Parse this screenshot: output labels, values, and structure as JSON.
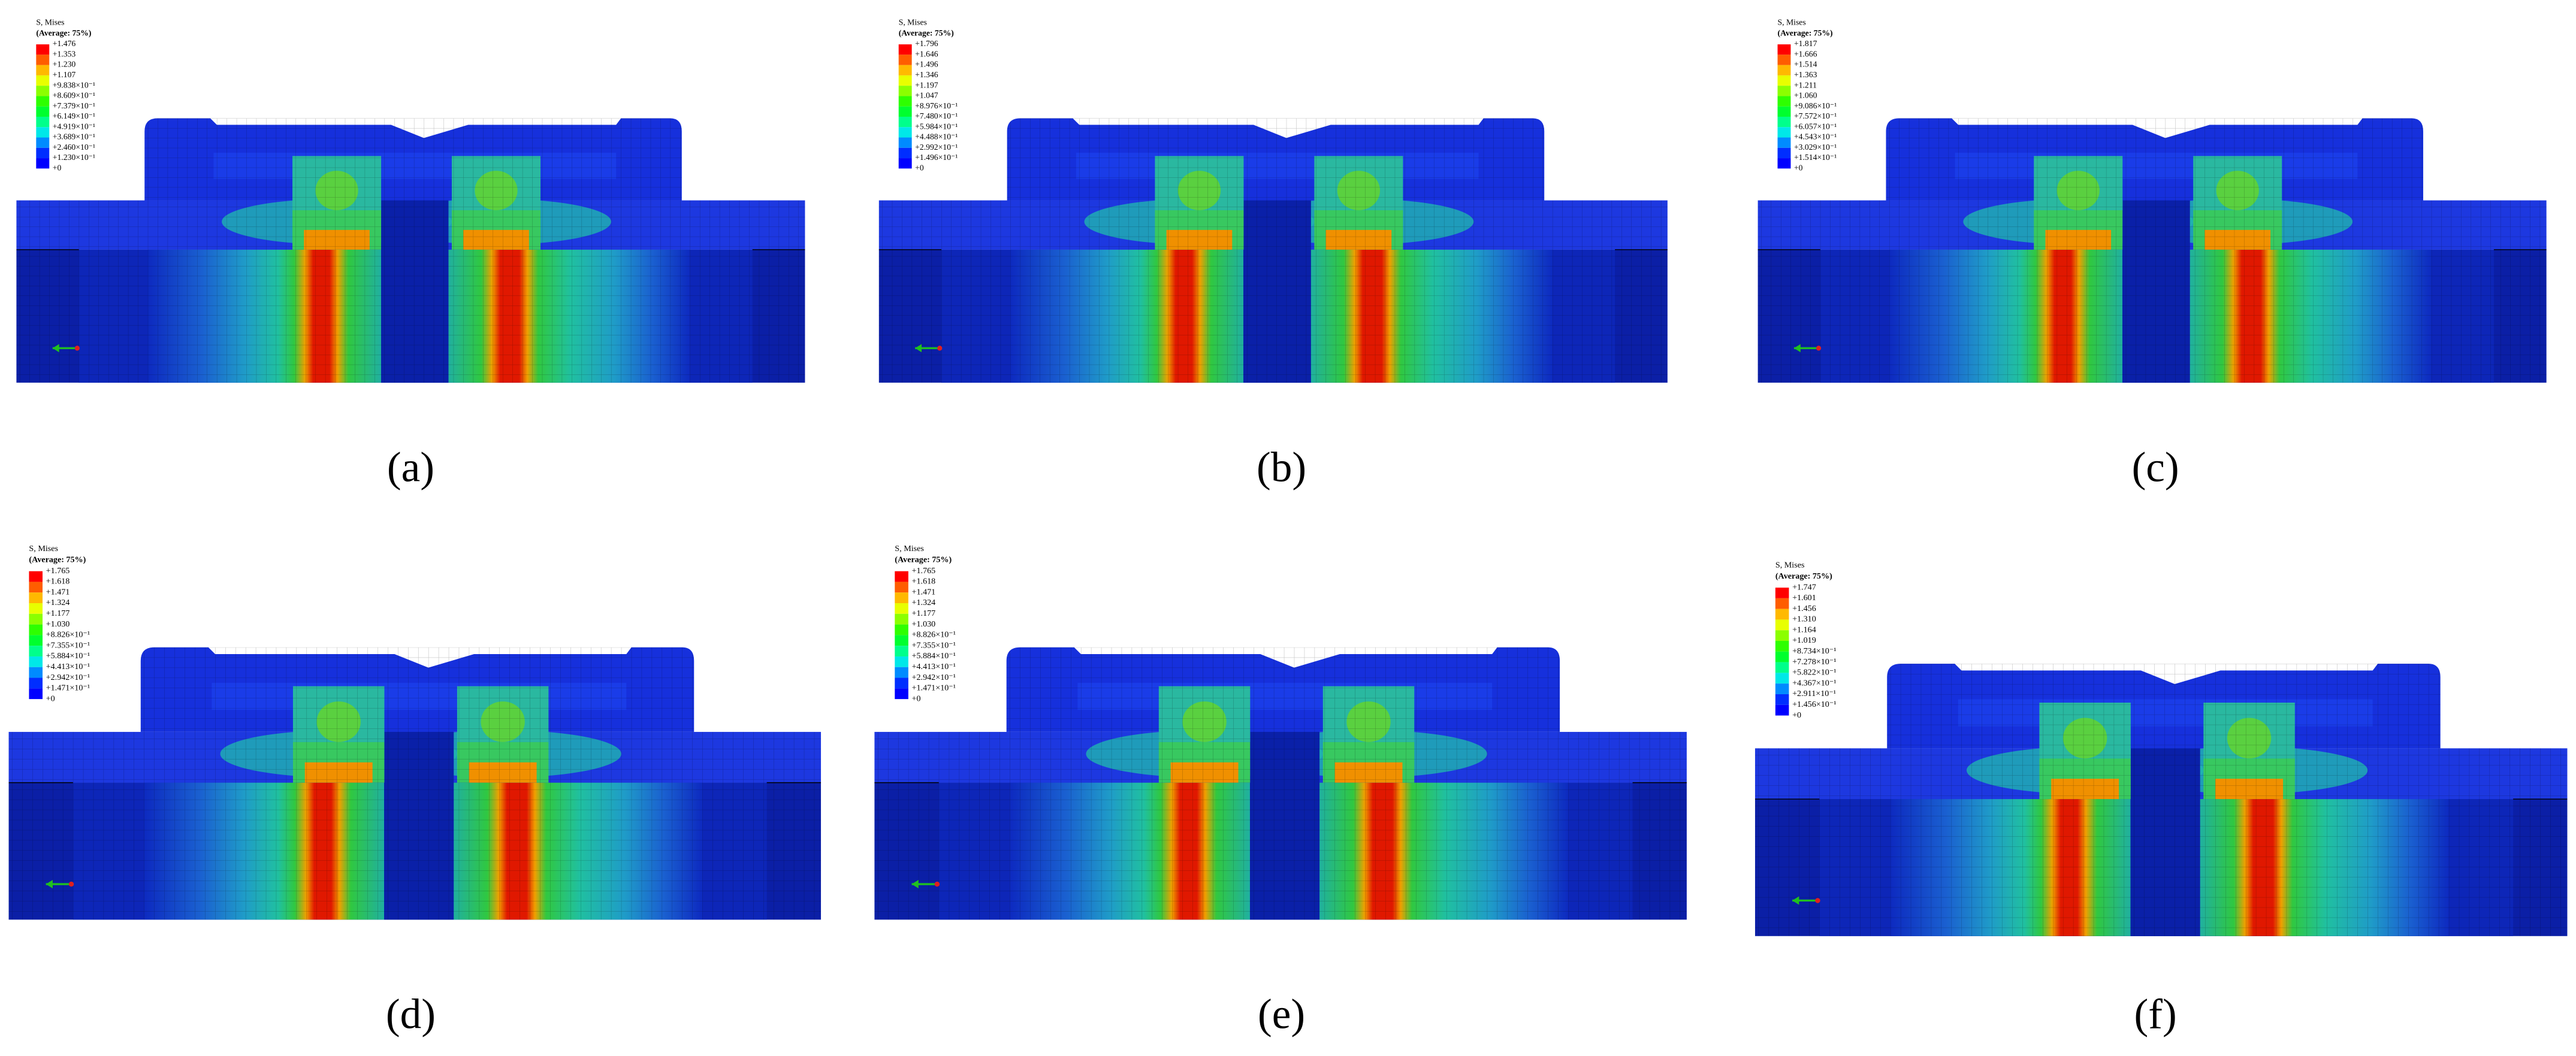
{
  "contour_colors": [
    "#ff0000",
    "#ff5d00",
    "#ffb900",
    "#e8ff00",
    "#8bff00",
    "#2eff00",
    "#00ff2e",
    "#00ff8b",
    "#00e8e8",
    "#008bff",
    "#002eff",
    "#0000ff"
  ],
  "panels": [
    {
      "legend_title": "S, Mises",
      "legend_subtitle": "(Average: 75%)",
      "caption": "(a)",
      "legend_labels": [
        "+1.476",
        "+1.353",
        "+1.230",
        "+1.107",
        "+9.838×10⁻¹",
        "+8.609×10⁻¹",
        "+7.379×10⁻¹",
        "+6.149×10⁻¹",
        "+4.919×10⁻¹",
        "+3.689×10⁻¹",
        "+2.460×10⁻¹",
        "+1.230×10⁻¹",
        "+0"
      ]
    },
    {
      "legend_title": "S, Mises",
      "legend_subtitle": "(Average: 75%)",
      "caption": "(b)",
      "legend_labels": [
        "+1.796",
        "+1.646",
        "+1.496",
        "+1.346",
        "+1.197",
        "+1.047",
        "+8.976×10⁻¹",
        "+7.480×10⁻¹",
        "+5.984×10⁻¹",
        "+4.488×10⁻¹",
        "+2.992×10⁻¹",
        "+1.496×10⁻¹",
        "+0"
      ]
    },
    {
      "legend_title": "S, Mises",
      "legend_subtitle": "(Average: 75%)",
      "caption": "(c)",
      "legend_labels": [
        "+1.817",
        "+1.666",
        "+1.514",
        "+1.363",
        "+1.211",
        "+1.060",
        "+9.086×10⁻¹",
        "+7.572×10⁻¹",
        "+6.057×10⁻¹",
        "+4.543×10⁻¹",
        "+3.029×10⁻¹",
        "+1.514×10⁻¹",
        "+0"
      ]
    },
    {
      "legend_title": "S, Mises",
      "legend_subtitle": "(Average: 75%)",
      "caption": "(d)",
      "legend_labels": [
        "+1.765",
        "+1.618",
        "+1.471",
        "+1.324",
        "+1.177",
        "+1.030",
        "+8.826×10⁻¹",
        "+7.355×10⁻¹",
        "+5.884×10⁻¹",
        "+4.413×10⁻¹",
        "+2.942×10⁻¹",
        "+1.471×10⁻¹",
        "+0"
      ]
    },
    {
      "legend_title": "S, Mises",
      "legend_subtitle": "(Average: 75%)",
      "caption": "(e)",
      "legend_labels": [
        "+1.765",
        "+1.618",
        "+1.471",
        "+1.324",
        "+1.177",
        "+1.030",
        "+8.826×10⁻¹",
        "+7.355×10⁻¹",
        "+5.884×10⁻¹",
        "+4.413×10⁻¹",
        "+2.942×10⁻¹",
        "+1.471×10⁻¹",
        "+0"
      ]
    },
    {
      "legend_title": "S, Mises",
      "legend_subtitle": "(Average: 75%)",
      "caption": "(f)",
      "legend_labels": [
        "+1.747",
        "+1.601",
        "+1.456",
        "+1.310",
        "+1.164",
        "+1.019",
        "+8.734×10⁻¹",
        "+7.278×10⁻¹",
        "+5.822×10⁻¹",
        "+4.367×10⁻¹",
        "+2.911×10⁻¹",
        "+1.456×10⁻¹",
        "+0"
      ]
    }
  ]
}
